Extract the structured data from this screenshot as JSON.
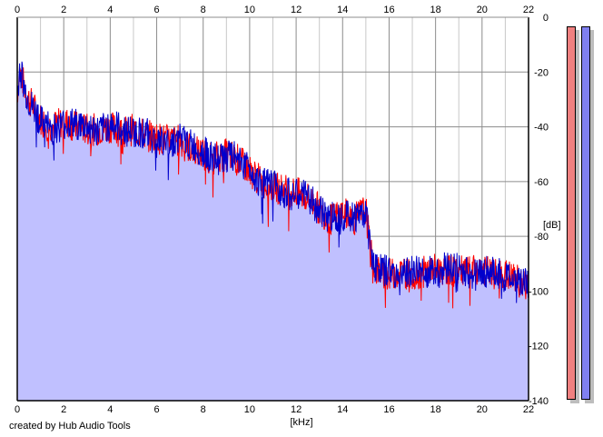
{
  "footer": {
    "credit": "created by Hub Audio Tools"
  },
  "colors": {
    "fill": "#c0c0ff",
    "left_channel": "#ff0000",
    "right_channel": "#0000cc",
    "grid_major": "#8c8c8c",
    "grid_minor": "#c8c8c8",
    "meter_left": "#f08080",
    "meter_right": "#8080f0"
  },
  "chart_data": {
    "type": "area",
    "xlabel": "[kHz]",
    "ylabel": "[dB]",
    "xlim": [
      0,
      22
    ],
    "ylim": [
      -140,
      0
    ],
    "x_ticks": [
      0,
      2,
      4,
      6,
      8,
      10,
      12,
      14,
      16,
      18,
      20,
      22
    ],
    "y_ticks": [
      0,
      -20,
      -40,
      -60,
      -80,
      -100,
      -120,
      -140
    ],
    "grid": true,
    "series": [
      {
        "channel": "left",
        "color": "#ff0000",
        "x": [
          0,
          0.1,
          0.2,
          0.3,
          0.5,
          0.8,
          1.0,
          1.2,
          1.5,
          2.0,
          2.5,
          3.0,
          3.5,
          4.0,
          4.5,
          5.0,
          5.5,
          6.0,
          6.5,
          7.0,
          7.5,
          8.0,
          8.5,
          9.0,
          9.5,
          10.0,
          10.5,
          11.0,
          11.5,
          12.0,
          12.5,
          13.0,
          13.5,
          14.0,
          14.5,
          15.0,
          15.2,
          15.4,
          15.6,
          16.0,
          16.5,
          17.0,
          17.5,
          18.0,
          18.5,
          19.0,
          19.5,
          20.0,
          20.5,
          21.0,
          21.5,
          22.0
        ],
        "values": [
          -28,
          -20,
          -22,
          -25,
          -30,
          -34,
          -37,
          -39,
          -40,
          -38,
          -40,
          -41,
          -41,
          -40,
          -42,
          -41,
          -43,
          -44,
          -45,
          -45,
          -48,
          -50,
          -51,
          -50,
          -52,
          -56,
          -60,
          -62,
          -63,
          -64,
          -66,
          -70,
          -74,
          -71,
          -74,
          -70,
          -86,
          -92,
          -93,
          -94,
          -93,
          -94,
          -93,
          -92,
          -92,
          -93,
          -93,
          -92,
          -94,
          -94,
          -96,
          -99
        ]
      },
      {
        "channel": "right",
        "color": "#0000cc",
        "x": [
          0,
          0.1,
          0.2,
          0.3,
          0.5,
          0.8,
          1.0,
          1.2,
          1.5,
          2.0,
          2.5,
          3.0,
          3.5,
          4.0,
          4.5,
          5.0,
          5.5,
          6.0,
          6.5,
          7.0,
          7.5,
          8.0,
          8.5,
          9.0,
          9.5,
          10.0,
          10.5,
          11.0,
          11.5,
          12.0,
          12.5,
          13.0,
          13.5,
          14.0,
          14.5,
          15.0,
          15.2,
          15.4,
          15.6,
          16.0,
          16.5,
          17.0,
          17.5,
          18.0,
          18.5,
          19.0,
          19.5,
          20.0,
          20.5,
          21.0,
          21.5,
          22.0
        ],
        "values": [
          -30,
          -19,
          -21,
          -26,
          -31,
          -35,
          -38,
          -39,
          -41,
          -39,
          -39,
          -40,
          -42,
          -39,
          -41,
          -42,
          -42,
          -45,
          -46,
          -44,
          -47,
          -49,
          -52,
          -51,
          -51,
          -55,
          -61,
          -61,
          -64,
          -65,
          -65,
          -71,
          -73,
          -72,
          -73,
          -71,
          -84,
          -91,
          -92,
          -93,
          -94,
          -93,
          -92,
          -93,
          -91,
          -92,
          -94,
          -93,
          -93,
          -95,
          -95,
          -98
        ]
      }
    ]
  }
}
